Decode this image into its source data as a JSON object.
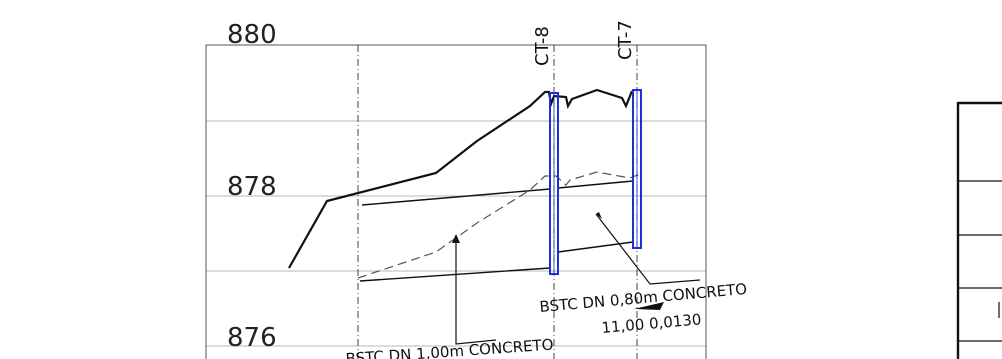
{
  "elevations": {
    "e880": "880",
    "e878": "878",
    "e876": "876"
  },
  "stations": {
    "ct8": "CT-8",
    "ct7": "CT-7"
  },
  "annotations": {
    "pipe_a_line1": "BSTC  DN  0,80m  CONCRETO",
    "pipe_a_line2": "11,00  0,0130",
    "pipe_b_line1": "BSTC  DN  1,00m  CONCRETO"
  },
  "colors": {
    "structure": "#1f2fd6",
    "line": "#111111",
    "grid": "#b8b8b8"
  }
}
